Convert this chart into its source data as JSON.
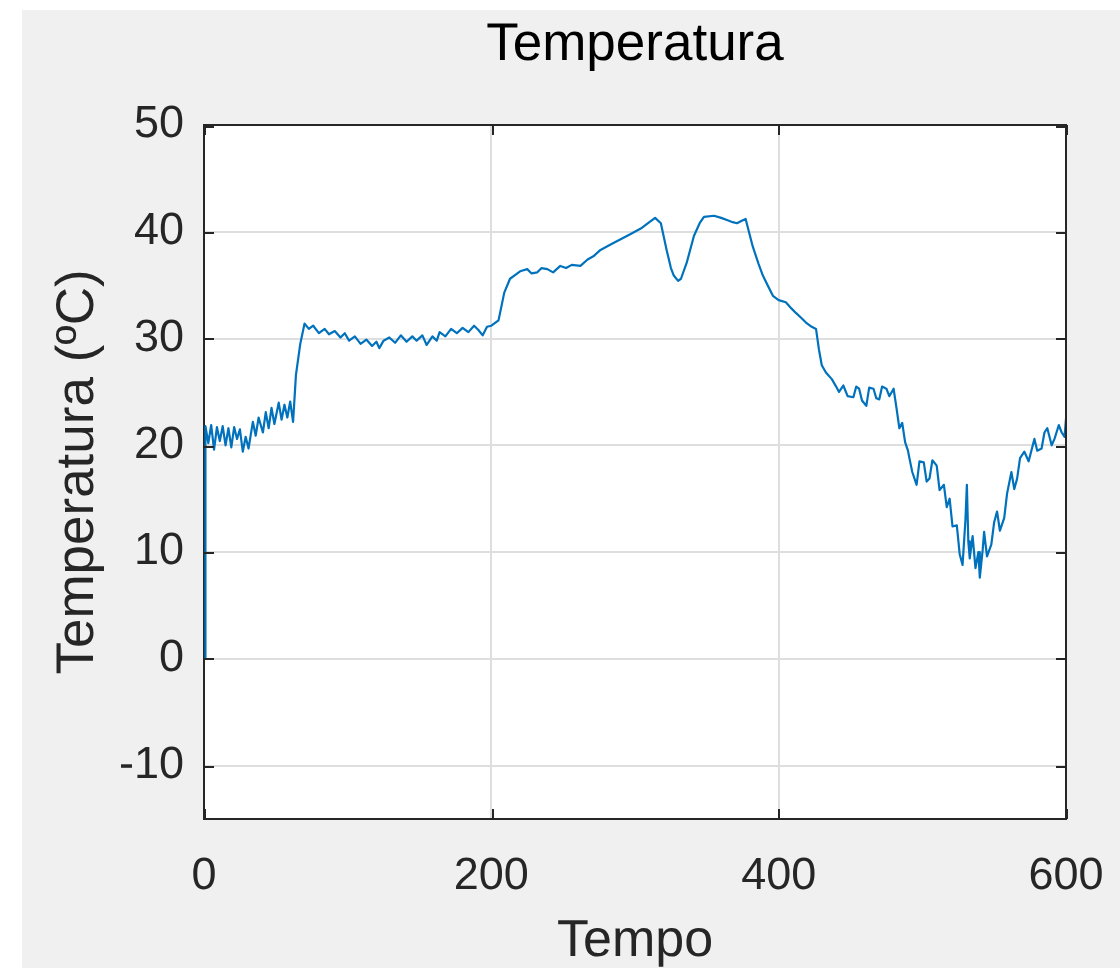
{
  "chart_data": {
    "type": "line",
    "title": "Temperatura",
    "xlabel": "Tempo",
    "ylabel": "Temperatura (ºC)",
    "xlim": [
      0,
      600
    ],
    "ylim": [
      -15,
      50
    ],
    "xticks": [
      0,
      200,
      400,
      600
    ],
    "yticks": [
      -10,
      0,
      10,
      20,
      30,
      40,
      50
    ],
    "grid": true,
    "color": "#0072bd",
    "x": [
      0,
      1,
      3,
      5,
      7,
      9,
      11,
      13,
      15,
      17,
      19,
      21,
      23,
      25,
      27,
      29,
      31,
      34,
      36,
      38,
      41,
      43,
      45,
      47,
      49,
      52,
      54,
      56,
      58,
      60,
      62,
      64,
      67,
      70,
      73,
      76,
      80,
      84,
      87,
      91,
      95,
      98,
      101,
      105,
      109,
      113,
      117,
      120,
      122,
      125,
      129,
      133,
      137,
      141,
      145,
      148,
      152,
      155,
      159,
      162,
      164,
      168,
      172,
      176,
      180,
      184,
      188,
      191,
      194,
      197,
      200,
      205,
      209,
      213,
      216,
      220,
      225,
      228,
      232,
      235,
      239,
      243,
      248,
      252,
      256,
      262,
      267,
      271,
      276,
      283,
      290,
      297,
      304,
      310,
      314,
      318,
      322,
      325,
      327,
      330,
      332,
      336,
      341,
      345,
      348,
      355,
      360,
      364,
      368,
      371,
      374,
      377,
      382,
      386,
      389,
      393,
      396,
      400,
      405,
      409,
      412,
      416,
      419,
      423,
      426,
      428,
      430,
      433,
      437,
      440,
      442,
      445,
      448,
      452,
      454,
      456,
      458,
      461,
      463,
      466,
      468,
      470,
      472,
      475,
      477,
      480,
      482,
      484,
      486,
      488,
      490,
      491,
      493,
      496,
      498,
      501,
      503,
      505,
      507,
      510,
      512,
      515,
      517,
      519,
      521,
      524,
      526,
      528,
      530,
      531,
      532,
      533,
      535,
      537,
      539,
      540,
      542,
      543,
      545,
      548,
      550,
      552,
      554,
      557,
      559,
      562,
      564,
      566,
      568,
      571,
      574,
      578,
      580,
      583,
      585,
      587,
      590,
      592,
      595,
      597,
      599,
      600
    ],
    "values": [
      0,
      21.8,
      20.2,
      21.9,
      19.6,
      21.7,
      20.4,
      21.8,
      20.0,
      21.6,
      19.8,
      21.7,
      20.6,
      21.5,
      19.4,
      20.8,
      19.7,
      22.2,
      20.9,
      22.6,
      21.2,
      23.1,
      21.6,
      23.5,
      22.0,
      24.0,
      22.4,
      23.8,
      22.6,
      24.1,
      22.2,
      26.6,
      29.5,
      31.4,
      30.9,
      31.2,
      30.5,
      30.9,
      30.4,
      30.7,
      30.1,
      30.5,
      29.8,
      30.2,
      29.5,
      29.9,
      29.3,
      29.7,
      29.1,
      29.8,
      30.1,
      29.6,
      30.3,
      29.7,
      30.2,
      29.8,
      30.3,
      29.4,
      30.2,
      29.8,
      30.6,
      30.2,
      30.9,
      30.5,
      31.0,
      30.6,
      31.2,
      30.8,
      30.3,
      31.1,
      31.2,
      31.7,
      34.3,
      35.6,
      35.9,
      36.3,
      36.5,
      36.1,
      36.2,
      36.6,
      36.5,
      36.2,
      36.8,
      36.6,
      36.9,
      36.8,
      37.4,
      37.7,
      38.3,
      38.8,
      39.3,
      39.8,
      40.3,
      40.9,
      41.3,
      40.8,
      38.3,
      36.6,
      35.9,
      35.4,
      35.6,
      37.1,
      39.6,
      40.8,
      41.4,
      41.5,
      41.3,
      41.1,
      40.9,
      40.8,
      41.0,
      41.2,
      38.6,
      37.0,
      35.9,
      34.8,
      34.0,
      33.6,
      33.4,
      32.8,
      32.4,
      31.9,
      31.5,
      31.1,
      30.9,
      29.0,
      27.5,
      26.8,
      26.2,
      25.5,
      25.0,
      25.6,
      24.6,
      24.5,
      25.5,
      25.3,
      24.2,
      23.7,
      25.4,
      25.3,
      24.4,
      24.3,
      25.5,
      25.3,
      24.6,
      25.3,
      23.5,
      21.6,
      22.1,
      20.3,
      19.5,
      18.8,
      17.5,
      16.3,
      18.5,
      18.4,
      16.6,
      16.9,
      18.6,
      18.1,
      15.8,
      16.3,
      14.2,
      15.0,
      12.4,
      12.5,
      9.8,
      8.8,
      13.0,
      16.3,
      11.0,
      9.4,
      11.5,
      8.5,
      10.0,
      7.6,
      10.2,
      11.9,
      9.6,
      10.7,
      12.8,
      13.8,
      12.0,
      13.2,
      15.5,
      17.5,
      15.9,
      16.9,
      18.8,
      19.4,
      18.5,
      20.6,
      19.5,
      19.7,
      21.2,
      21.6,
      20.0,
      20.6,
      21.9,
      21.2,
      20.8,
      22.5
    ]
  }
}
